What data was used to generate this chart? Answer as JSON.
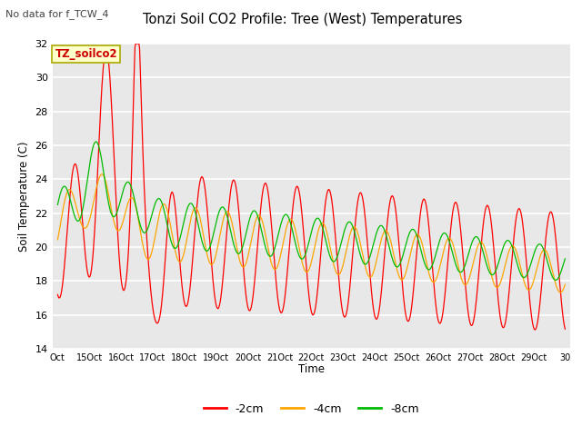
{
  "title": "Tonzi Soil CO2 Profile: Tree (West) Temperatures",
  "subtitle": "No data for f_TCW_4",
  "ylabel": "Soil Temperature (C)",
  "xlabel": "Time",
  "annotation": "TZ_soilco2",
  "ylim": [
    14,
    32
  ],
  "bg_color": "#ffffff",
  "plot_bg": "#e8e8e8",
  "xtick_labels": [
    "Oct",
    "15Oct",
    "16Oct",
    "17Oct",
    "18Oct",
    "19Oct",
    "20Oct",
    "21Oct",
    "22Oct",
    "23Oct",
    "24Oct",
    "25Oct",
    "26Oct",
    "27Oct",
    "28Oct",
    "29Oct",
    "30"
  ],
  "ytick_positions": [
    14,
    16,
    18,
    20,
    22,
    24,
    26,
    28,
    30,
    32
  ],
  "line_colors": {
    "2cm": "#ff0000",
    "4cm": "#ffa500",
    "8cm": "#00bb00"
  },
  "legend": {
    "labels": [
      "-2cm",
      "-4cm",
      "-8cm"
    ],
    "colors": [
      "#ff0000",
      "#ffa500",
      "#00bb00"
    ]
  }
}
